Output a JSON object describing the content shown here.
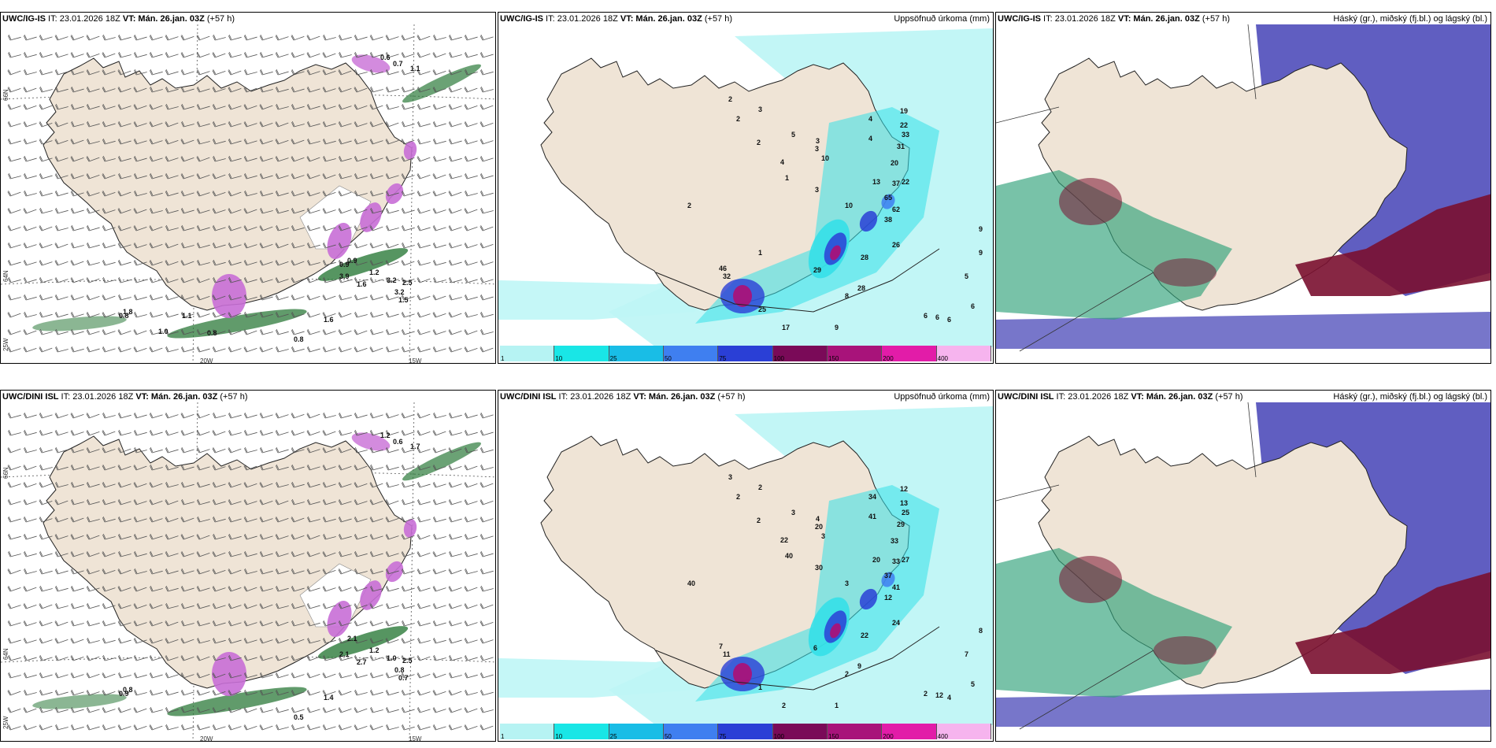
{
  "rows": [
    {
      "model": "UWC/IG-IS",
      "panels": [
        {
          "kind": "wind",
          "title_model": "UWC/IG-IS",
          "it": " IT: 23.01.2026 18Z ",
          "vt_label": "VT: ",
          "vt": "Mán. 26.jan. 03Z",
          "lead": " (+57 h)",
          "right_title": "",
          "labels": [
            "0.6",
            "0.7",
            "1.1",
            "0.9",
            "1.2",
            "1.6",
            "3.2",
            "2.5",
            "3.9",
            "3.2",
            "1.5",
            "1.6",
            "0.8",
            "1.8",
            "0.8",
            "1.0",
            "0.8",
            "0.9",
            "1.1"
          ]
        },
        {
          "kind": "precip",
          "title_model": "UWC/IG-IS",
          "it": " IT: 23.01.2026 18Z ",
          "vt_label": "VT: ",
          "vt": "Mán. 26.jan. 03Z",
          "lead": " (+57 h)",
          "right_title": "Uppsöfnuð úrkoma (mm)",
          "labels": [
            "2",
            "3",
            "2",
            "2",
            "5",
            "3",
            "4",
            "3",
            "1",
            "2",
            "3",
            "4",
            "4",
            "19",
            "22",
            "33",
            "31",
            "20",
            "22",
            "37",
            "65",
            "62",
            "38",
            "13",
            "26",
            "28",
            "28",
            "29",
            "46",
            "32",
            "25",
            "17",
            "8",
            "9",
            "6",
            "10",
            "10",
            "6",
            "6",
            "6",
            "5",
            "9",
            "9",
            "1"
          ]
        },
        {
          "kind": "cloud",
          "title_model": "UWC/IG-IS",
          "it": " IT: 23.01.2026 18Z ",
          "vt_label": "VT: ",
          "vt": "Mán. 26.jan. 03Z",
          "lead": " (+57 h)",
          "right_title": "Háský (gr.), miðský (fj.bl.) og lágský (bl.)",
          "labels": []
        }
      ]
    },
    {
      "model": "UWC/DINI ISL",
      "panels": [
        {
          "kind": "wind",
          "title_model": "UWC/DINI ISL",
          "it": " IT: 23.01.2026 18Z ",
          "vt_label": "VT: ",
          "vt": "Mán. 26.jan. 03Z",
          "lead": " (+57 h)",
          "right_title": "",
          "labels": [
            "1.2",
            "0.6",
            "1.7",
            "2.1",
            "1.2",
            "2.7",
            "1.0",
            "2.5",
            "2.1",
            "0.8",
            "0.7",
            "1.4",
            "0.5",
            "0.8",
            "0.9"
          ]
        },
        {
          "kind": "precip",
          "title_model": "UWC/DINI ISL",
          "it": " IT: 23.01.2026 18Z ",
          "vt_label": "VT: ",
          "vt": "Mán. 26.jan. 03Z",
          "lead": " (+57 h)",
          "right_title": "Uppsöfnuð úrkoma (mm)",
          "labels": [
            "3",
            "2",
            "2",
            "2",
            "3",
            "4",
            "22",
            "20",
            "40",
            "40",
            "30",
            "34",
            "41",
            "12",
            "13",
            "25",
            "29",
            "33",
            "27",
            "33",
            "37",
            "41",
            "12",
            "20",
            "24",
            "22",
            "9",
            "6",
            "7",
            "11",
            "1",
            "2",
            "2",
            "1",
            "5",
            "3",
            "3",
            "2",
            "12",
            "4",
            "7",
            "8"
          ]
        },
        {
          "kind": "cloud",
          "title_model": "UWC/DINI ISL",
          "it": " IT: 23.01.2026 18Z ",
          "vt_label": "VT: ",
          "vt": "Mán. 26.jan. 03Z",
          "lead": " (+57 h)",
          "right_title": "Háský (gr.), miðský (fj.bl.) og lágský (bl.)",
          "labels": []
        }
      ]
    }
  ],
  "axis": {
    "lat_labels": [
      "66N",
      "64N",
      "25W"
    ],
    "lon_labels": [
      "20W",
      "15W"
    ],
    "right_lat": [
      "66N",
      "64N"
    ]
  },
  "colorbar": {
    "ticks": [
      "1",
      "10",
      "25",
      "50",
      "75",
      "100",
      "150",
      "200",
      "400"
    ],
    "colors": [
      "#b6f3f3",
      "#19e6e6",
      "#19bde6",
      "#3f7ff0",
      "#2a3fd6",
      "#7a0a58",
      "#a8137a",
      "#e21ca8",
      "#f6b4ee"
    ]
  },
  "map_colors": {
    "land": "#efe4d6",
    "sea": "#ffffff",
    "precip_bg": "#bff6f6",
    "precip_mid": "#35e0e8",
    "snow": "#c86ed6",
    "rain_green": "#2c7a3a",
    "high_cloud": "#2fa27a",
    "mid_cloud": "#4a48b8",
    "low_cloud": "#7a1030"
  }
}
